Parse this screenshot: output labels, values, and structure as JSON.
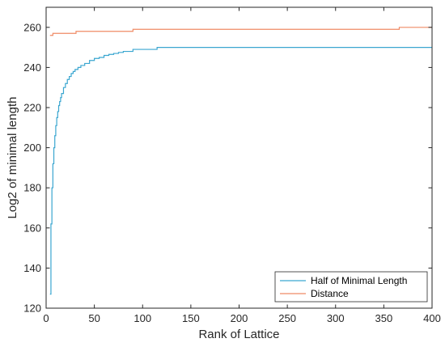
{
  "chart_data": {
    "type": "line",
    "title": "",
    "xlabel": "Rank of Lattice",
    "ylabel": "Log2 of minimal length",
    "xlim": [
      0,
      400
    ],
    "ylim": [
      120,
      270
    ],
    "xticks": [
      0,
      50,
      100,
      150,
      200,
      250,
      300,
      350,
      400
    ],
    "yticks": [
      120,
      140,
      160,
      180,
      200,
      220,
      240,
      260
    ],
    "grid": false,
    "legend_position": "bottom-right",
    "series": [
      {
        "name": "Half of Minimal Length",
        "color": "#0072BD",
        "line_color": "#3aa6d0",
        "x": [
          4,
          5,
          6,
          7,
          8,
          9,
          10,
          11,
          12,
          13,
          14,
          15,
          16,
          18,
          20,
          22,
          24,
          26,
          28,
          30,
          33,
          36,
          40,
          45,
          50,
          55,
          60,
          65,
          70,
          75,
          80,
          85,
          90,
          100,
          110,
          115,
          150,
          200,
          250,
          300,
          350,
          400
        ],
        "y": [
          127,
          162,
          180,
          192,
          200,
          206,
          211,
          215,
          218,
          221,
          223,
          225,
          227,
          230,
          232,
          234,
          235.5,
          237,
          238,
          239,
          240,
          241,
          242,
          243.5,
          244.5,
          245,
          246,
          246.5,
          247,
          247.5,
          248,
          248,
          249,
          249,
          249,
          250,
          250,
          250,
          250,
          250,
          250,
          250
        ],
        "step": true
      },
      {
        "name": "Distance",
        "color": "#D95319",
        "line_color": "#ef8b66",
        "x": [
          4,
          7,
          30,
          31,
          89,
          90,
          365,
          366,
          400
        ],
        "y": [
          256,
          257,
          257,
          258,
          258,
          259,
          259,
          260,
          260
        ],
        "step": true
      }
    ]
  }
}
